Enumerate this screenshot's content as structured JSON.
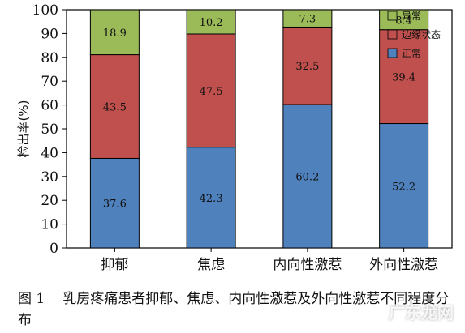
{
  "chart_data": {
    "type": "bar",
    "stacked": true,
    "ylabel": "检出率(%)",
    "ylim": [
      0,
      100
    ],
    "yticks": [
      0,
      10,
      20,
      30,
      40,
      50,
      60,
      70,
      80,
      90,
      100
    ],
    "grid": false,
    "legend_position": "top-right",
    "categories": [
      "抑郁",
      "焦虑",
      "内向性激惹",
      "外向性激惹"
    ],
    "series": [
      {
        "name": "正常",
        "color": "#4f81bd",
        "values": [
          37.6,
          42.3,
          60.2,
          52.2
        ]
      },
      {
        "name": "边缘状态",
        "color": "#c0504d",
        "values": [
          43.5,
          47.5,
          32.5,
          39.4
        ]
      },
      {
        "name": "异常",
        "color": "#9bbb59",
        "values": [
          18.9,
          10.2,
          7.3,
          8.4
        ]
      }
    ],
    "legend_order": [
      "异常",
      "边缘状态",
      "正常"
    ]
  },
  "caption": {
    "figure_label": "图 1",
    "text": "乳房疼痛患者抑郁、焦虑、内向性激惹及外向性激惹不同程度分布"
  },
  "watermark": "广东龙网"
}
